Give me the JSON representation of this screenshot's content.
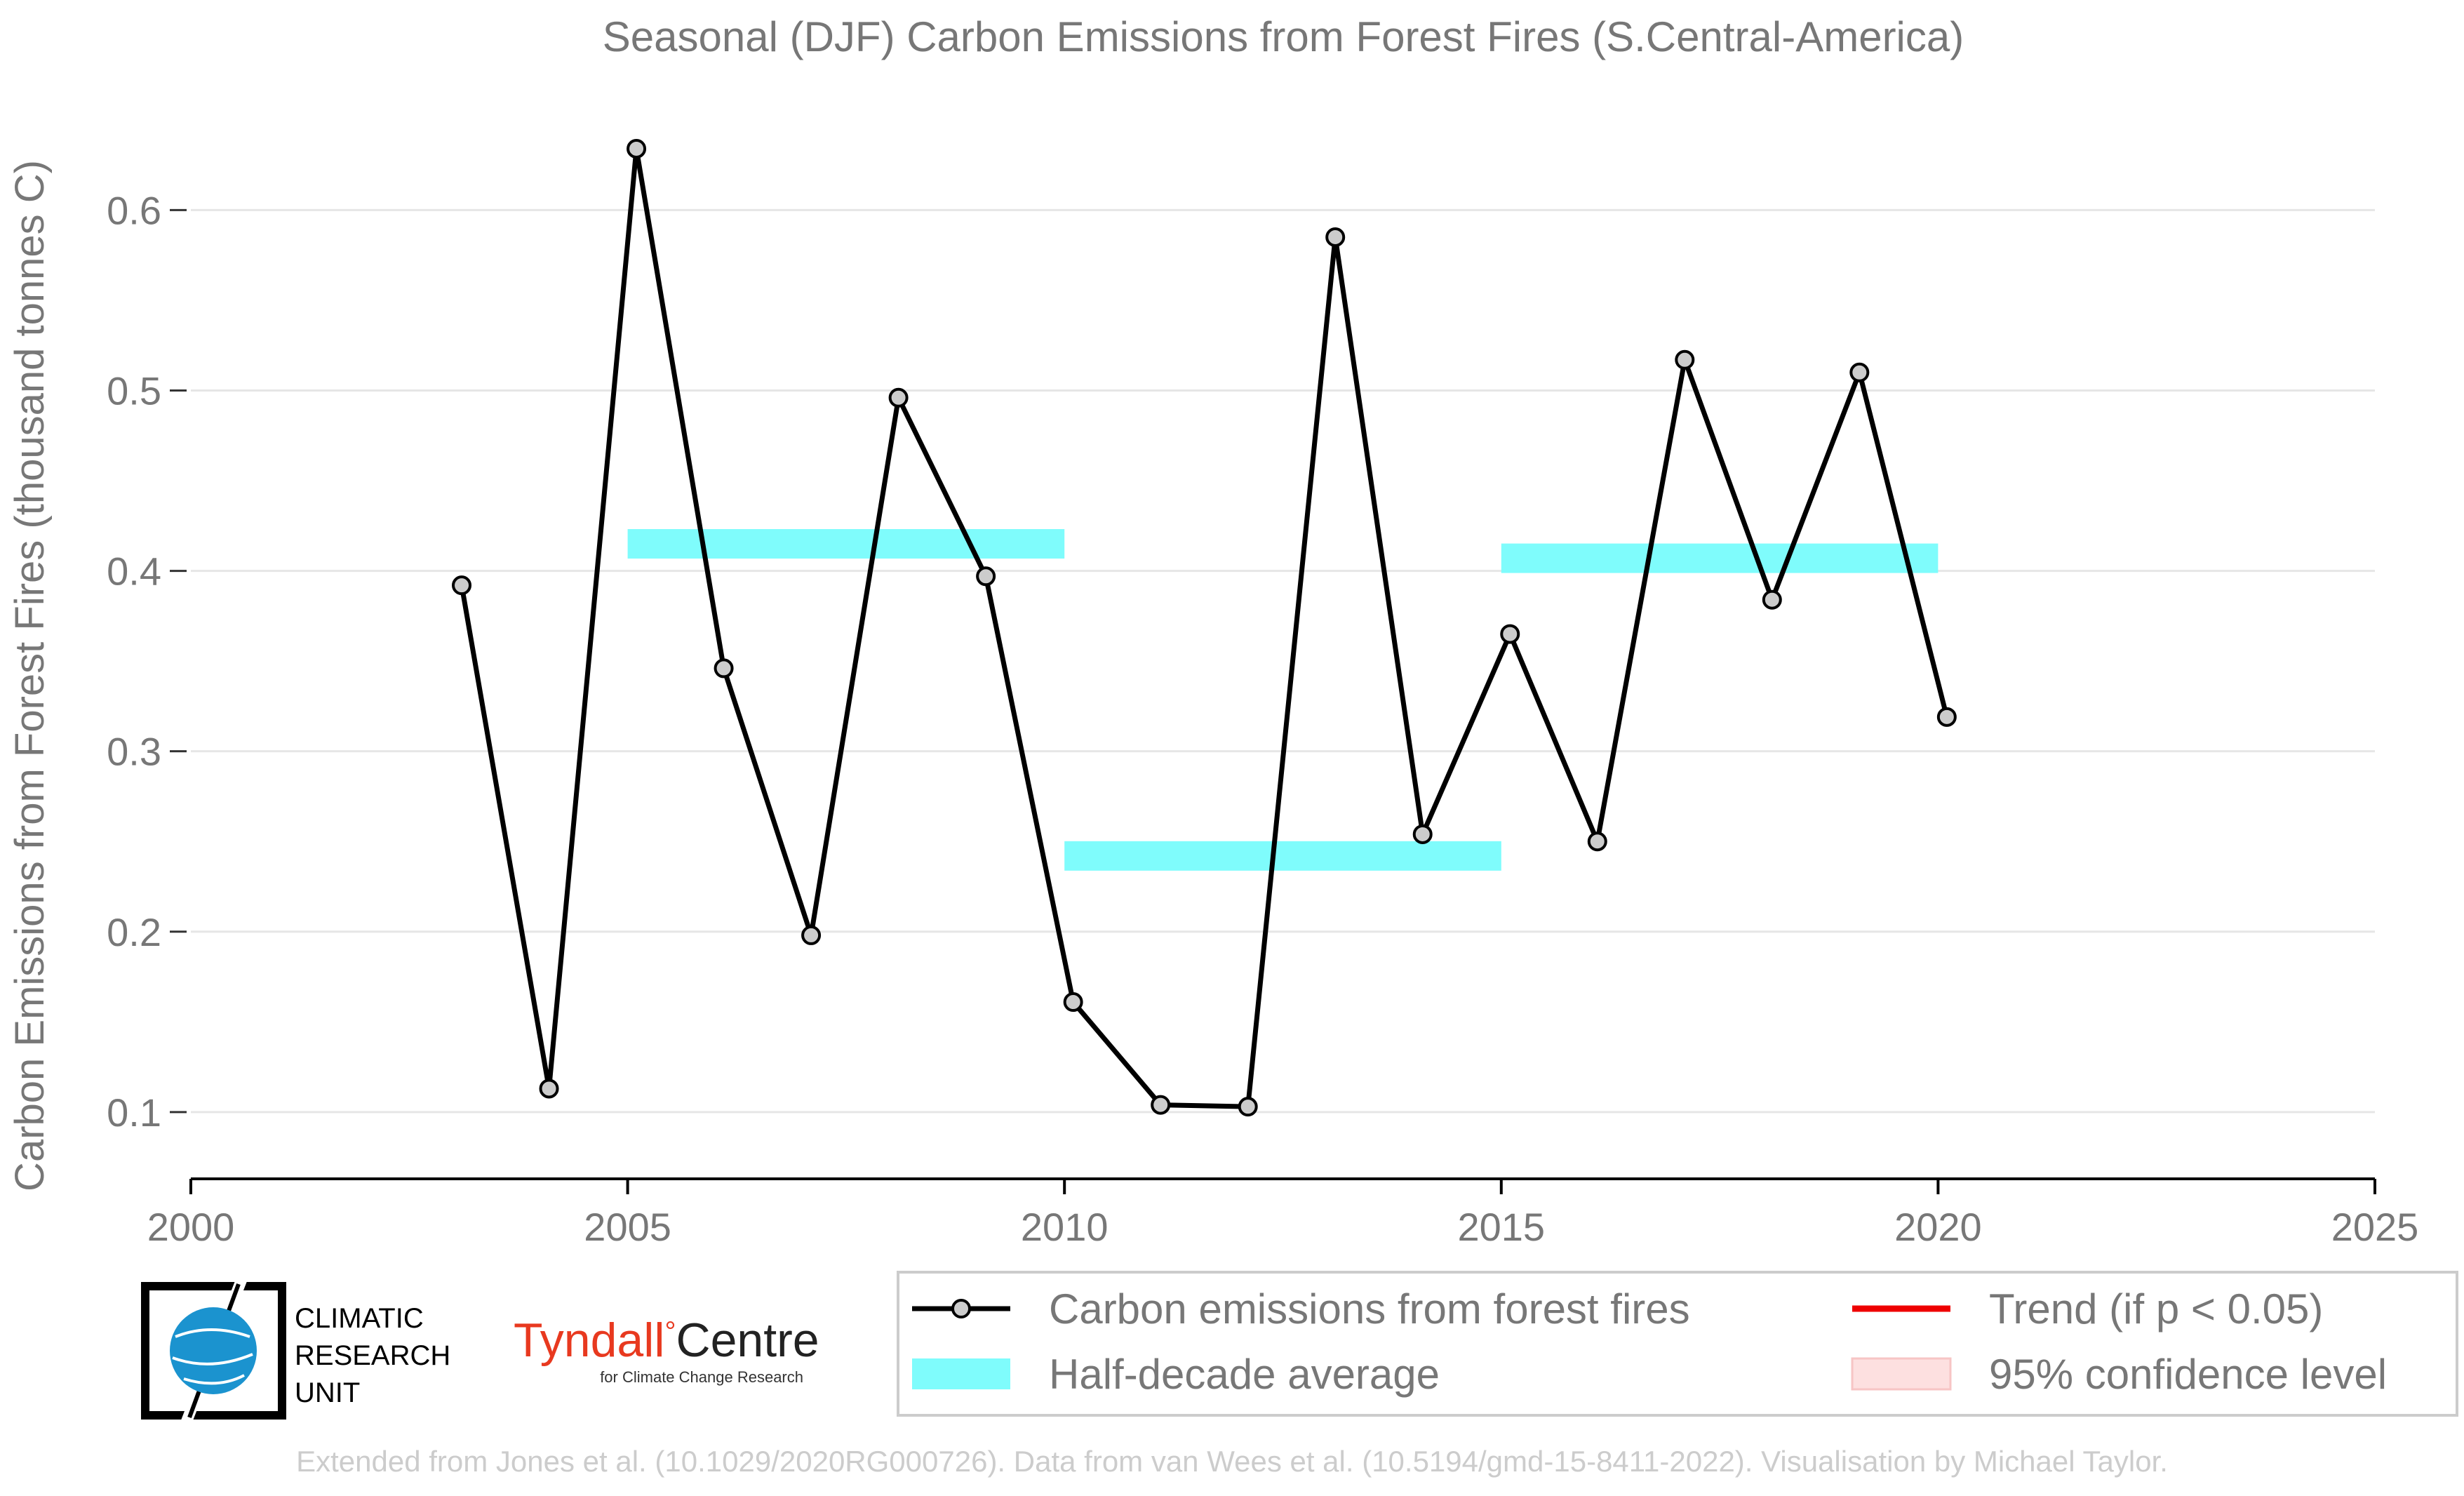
{
  "chart_data": {
    "type": "line",
    "title": "Seasonal (DJF) Carbon Emissions from Forest Fires (S.Central-America)",
    "xlabel": "",
    "ylabel": "Carbon Emissions from Forest Fires (thousand tonnes C)",
    "xlim": [
      2000,
      2025
    ],
    "ylim": [
      0.063,
      0.662
    ],
    "xticks": [
      "2000",
      "2005",
      "2010",
      "2015",
      "2020",
      "2025"
    ],
    "yticks": [
      "0.1",
      "0.2",
      "0.3",
      "0.4",
      "0.5",
      "0.6"
    ],
    "grid": "horizontal",
    "series": [
      {
        "name": "Carbon emissions from forest fires",
        "color": "#000000",
        "marker_fill": "#cccccc",
        "x": [
          2003.1,
          2004.1,
          2005.1,
          2006.1,
          2007.1,
          2008.1,
          2009.1,
          2010.1,
          2011.1,
          2012.1,
          2013.1,
          2014.1,
          2015.1,
          2016.1,
          2017.1,
          2018.1,
          2019.1,
          2020.1
        ],
        "y": [
          0.392,
          0.113,
          0.634,
          0.346,
          0.198,
          0.496,
          0.397,
          0.161,
          0.104,
          0.103,
          0.585,
          0.254,
          0.365,
          0.25,
          0.517,
          0.384,
          0.51,
          0.319
        ]
      }
    ],
    "half_decade_average": {
      "name": "Half-decade average",
      "color": "#7ffcfc",
      "segments": [
        {
          "x0": 2005,
          "x1": 2010,
          "y": 0.415
        },
        {
          "x0": 2010,
          "x1": 2015,
          "y": 0.242
        },
        {
          "x0": 2015,
          "x1": 2020,
          "y": 0.407
        }
      ]
    },
    "legend": {
      "placement": "bottom-right",
      "entries": [
        {
          "label": "Carbon emissions from forest fires",
          "kind": "line-marker",
          "color": "#000000"
        },
        {
          "label": "Half-decade average",
          "kind": "band",
          "color": "#7ffcfc"
        },
        {
          "label": "Trend (if p < 0.05)",
          "kind": "line",
          "color": "#ee0000"
        },
        {
          "label": "95% confidence level",
          "kind": "band",
          "color": "#fde0e0"
        }
      ]
    }
  },
  "logos": {
    "cru_lines": [
      "CLIMATIC",
      "RESEARCH",
      "UNIT"
    ],
    "tyndall_name": "Tyndall",
    "tyndall_degree": "°",
    "tyndall_centre": "Centre",
    "tyndall_sub": "for Climate Change Research"
  },
  "footer": "Extended from Jones et al. (10.1029/2020RG000726). Data from van Wees et al. (10.5194/gmd-15-8411-2022). Visualisation by Michael Taylor."
}
